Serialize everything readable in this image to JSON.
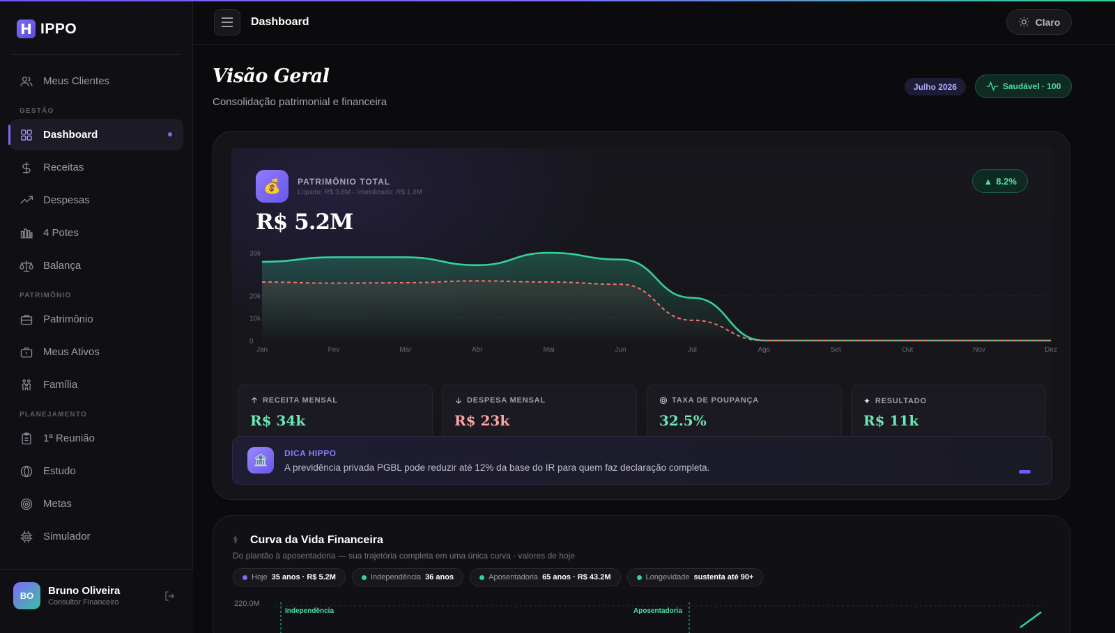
{
  "app": {
    "brand_letter": "H",
    "brand_rest": "IPPO",
    "page": "Dashboard"
  },
  "theme_toggle": {
    "label": "Claro",
    "icon": "sun-icon"
  },
  "sidebar": {
    "top_item": {
      "label": "Meus Clientes",
      "icon": "users-icon"
    },
    "sections": [
      {
        "title": "GESTÃO",
        "items": [
          {
            "label": "Dashboard",
            "icon": "grid-icon",
            "active": true
          },
          {
            "label": "Receitas",
            "icon": "dollar-icon"
          },
          {
            "label": "Despesas",
            "icon": "trend-up-icon"
          },
          {
            "label": "4 Potes",
            "icon": "bars-icon"
          },
          {
            "label": "Balança",
            "icon": "scale-icon"
          }
        ]
      },
      {
        "title": "PATRIMÔNIO",
        "items": [
          {
            "label": "Patrimônio",
            "icon": "briefcase-icon"
          },
          {
            "label": "Meus Ativos",
            "icon": "briefcase-icon"
          },
          {
            "label": "Família",
            "icon": "family-icon"
          }
        ]
      },
      {
        "title": "PLANEJAMENTO",
        "items": [
          {
            "label": "1ª Reunião",
            "icon": "clipboard-icon"
          },
          {
            "label": "Estudo",
            "icon": "globe-icon"
          },
          {
            "label": "Metas",
            "icon": "target-icon"
          },
          {
            "label": "Simulador",
            "icon": "chip-icon"
          }
        ]
      }
    ],
    "user": {
      "initials": "BO",
      "name": "Bruno Oliveira",
      "role": "Consultor Financeiro"
    }
  },
  "header": {
    "title": "Visão Geral",
    "subtitle": "Consolidação patrimonial e financeira",
    "month": "Julho 2026",
    "health": "Saudável · 100"
  },
  "hero": {
    "label": "PATRIMÔNIO TOTAL",
    "detail": "Líquido: R$ 3.8M · Imobilizado: R$ 1.4M",
    "value": "R$ 5.2M",
    "badge": "8.2%",
    "icon": "money-bag-icon"
  },
  "chart_data": {
    "type": "area",
    "categories": [
      "Jan",
      "Fev",
      "Mar",
      "Abr",
      "Mai",
      "Jun",
      "Jul",
      "Ago",
      "Set",
      "Out",
      "Nov",
      "Dez"
    ],
    "yticks": [
      "0",
      "10k",
      "20k",
      "39k"
    ],
    "ylim": [
      0,
      39000
    ],
    "series": [
      {
        "values": [
          35000,
          37000,
          37000,
          33500,
          39000,
          36000,
          19000,
          0,
          0,
          0,
          0,
          0
        ],
        "color": "#34d399",
        "style": "solid"
      },
      {
        "values": [
          26000,
          25500,
          25700,
          26500,
          26000,
          25000,
          9000,
          0,
          0,
          0,
          0,
          0
        ],
        "color": "#f87171",
        "style": "dashed"
      }
    ]
  },
  "stats": [
    {
      "label": "RECEITA MENSAL",
      "value": "R$ 34k",
      "icon": "arrow-up-icon",
      "color": "#6ee7b7"
    },
    {
      "label": "DESPESA MENSAL",
      "value": "R$ 23k",
      "icon": "arrow-down-icon",
      "color": "#fca5a5"
    },
    {
      "label": "TAXA DE POUPANÇA",
      "value": "32.5%",
      "icon": "ring-icon",
      "color": "#6ee7b7"
    },
    {
      "label": "RESULTADO",
      "value": "R$ 11k",
      "icon": "sparkle-icon",
      "color": "#6ee7b7"
    }
  ],
  "tip": {
    "title": "DICA HIPPO",
    "text": "A previdência privada PGBL pode reduzir até 12% da base do IR para quem faz declaração completa.",
    "icon": "bank-icon"
  },
  "life_curve": {
    "title": "Curva da Vida Financeira",
    "subtitle": "Do plantão à aposentadoria — sua trajetória completa em uma única curva · valores de hoje",
    "icon": "stethoscope-icon",
    "chips": [
      {
        "label": "Hoje",
        "value": "35 anos · R$ 5.2M",
        "color": "#7b6cf8"
      },
      {
        "label": "Independência",
        "value": "36 anos",
        "color": "#34d399"
      },
      {
        "label": "Aposentadoria",
        "value": "65 anos · R$ 43.2M",
        "color": "#34d399"
      },
      {
        "label": "Longevidade",
        "value": "sustenta até 90+",
        "color": "#34d399"
      }
    ],
    "y_top": "220.0M",
    "marker_independencia": "Independência",
    "marker_aposentadoria": "Aposentadoria"
  }
}
